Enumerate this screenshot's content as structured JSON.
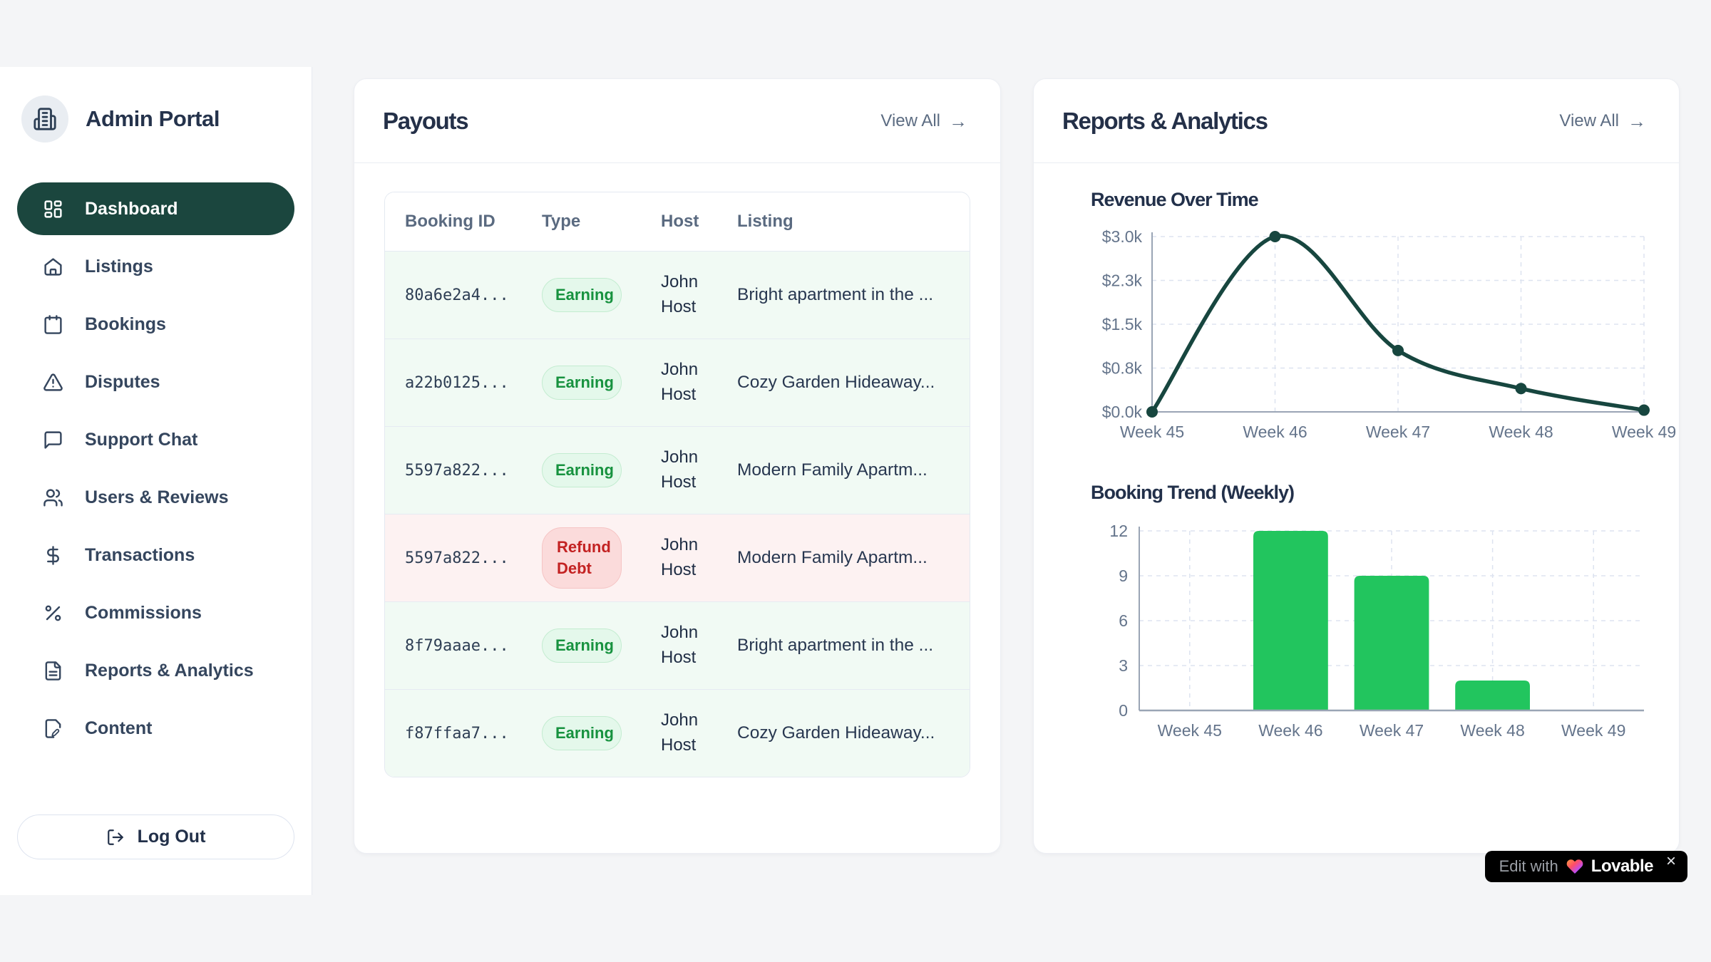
{
  "sidebar": {
    "logo_title": "Admin Portal",
    "items": [
      {
        "label": "Dashboard",
        "icon": "layout-dashboard-icon",
        "active": true
      },
      {
        "label": "Listings",
        "icon": "home-icon",
        "active": false
      },
      {
        "label": "Bookings",
        "icon": "calendar-icon",
        "active": false
      },
      {
        "label": "Disputes",
        "icon": "alert-triangle-icon",
        "active": false
      },
      {
        "label": "Support Chat",
        "icon": "message-square-icon",
        "active": false
      },
      {
        "label": "Users & Reviews",
        "icon": "users-icon",
        "active": false
      },
      {
        "label": "Transactions",
        "icon": "dollar-sign-icon",
        "active": false
      },
      {
        "label": "Commissions",
        "icon": "percent-icon",
        "active": false
      },
      {
        "label": "Reports & Analytics",
        "icon": "file-text-icon",
        "active": false
      },
      {
        "label": "Content",
        "icon": "file-pen-icon",
        "active": false
      }
    ],
    "logout_label": "Log Out"
  },
  "payouts": {
    "title": "Payouts",
    "view_all_label": "View All",
    "table": {
      "columns": [
        "Booking ID",
        "Type",
        "Host",
        "Listing"
      ],
      "rows": [
        {
          "booking_id": "80a6e2a4...",
          "type": "Earning",
          "variant": "earning",
          "host": "John Host",
          "listing": "Bright apartment in the ..."
        },
        {
          "booking_id": "a22b0125...",
          "type": "Earning",
          "variant": "earning",
          "host": "John Host",
          "listing": "Cozy Garden Hideaway..."
        },
        {
          "booking_id": "5597a822...",
          "type": "Earning",
          "variant": "earning",
          "host": "John Host",
          "listing": "Modern Family Apartm..."
        },
        {
          "booking_id": "5597a822...",
          "type": "Refund Debt",
          "variant": "refund",
          "host": "John Host",
          "listing": "Modern Family Apartm..."
        },
        {
          "booking_id": "8f79aaae...",
          "type": "Earning",
          "variant": "earning",
          "host": "John Host",
          "listing": "Bright apartment in the ..."
        },
        {
          "booking_id": "f87ffaa7...",
          "type": "Earning",
          "variant": "earning",
          "host": "John Host",
          "listing": "Cozy Garden Hideaway..."
        }
      ]
    }
  },
  "reports": {
    "title": "Reports & Analytics",
    "view_all_label": "View All"
  },
  "chart_data": [
    {
      "type": "line",
      "title": "Revenue Over Time",
      "x": [
        "Week 45",
        "Week 46",
        "Week 47",
        "Week 48",
        "Week 49"
      ],
      "values": [
        0,
        3000,
        1050,
        400,
        30
      ],
      "y_ticks": [
        0,
        750,
        1500,
        2250,
        3000
      ],
      "y_tick_labels": [
        "$0.0k",
        "$0.8k",
        "$1.5k",
        "$2.3k",
        "$3.0k"
      ],
      "ylim": [
        0,
        3000
      ],
      "grid": true,
      "legend": "none",
      "line_color": "#17463f"
    },
    {
      "type": "bar",
      "title": "Booking Trend (Weekly)",
      "categories": [
        "Week 45",
        "Week 46",
        "Week 47",
        "Week 48",
        "Week 49"
      ],
      "values": [
        0,
        12,
        9,
        2,
        0
      ],
      "y_ticks": [
        0,
        3,
        6,
        9,
        12
      ],
      "ylim": [
        0,
        12
      ],
      "grid": true,
      "legend": "none",
      "bar_color": "#22c55e"
    }
  ],
  "colors": {
    "accent_dark_teal": "#1b463e",
    "bar_green": "#22c55e",
    "earning_text": "#17923f",
    "refund_text": "#c32222",
    "axis_gray": "#9aa5b5",
    "grid_dash": "#dde3f0",
    "tick_label": "#64748b"
  },
  "lovable_badge": {
    "prefix": "Edit with",
    "brand": "Lovable",
    "close": "×"
  }
}
